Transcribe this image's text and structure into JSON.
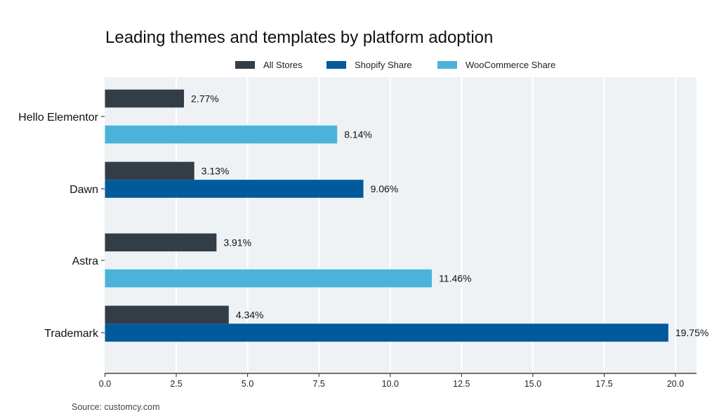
{
  "chart_data": {
    "type": "bar",
    "orientation": "horizontal",
    "title": "Leading themes and templates by platform adoption",
    "categories": [
      "Hello Elementor",
      "Dawn",
      "Astra",
      "Trademark"
    ],
    "series": [
      {
        "name": "All Stores",
        "color": "#333d47",
        "values": [
          2.77,
          3.13,
          3.91,
          4.34
        ]
      },
      {
        "name": "Shopify Share",
        "color": "#005a9c",
        "values": [
          null,
          9.06,
          null,
          19.75
        ]
      },
      {
        "name": "WooCommerce Share",
        "color": "#4bb3d9",
        "values": [
          8.14,
          null,
          11.46,
          null
        ]
      }
    ],
    "data_label_suffix": "%",
    "xlim": [
      0,
      20.75
    ],
    "xticks": [
      "0.0",
      "2.5",
      "5.0",
      "7.5",
      "10.0",
      "12.5",
      "15.0",
      "17.5",
      "20.0"
    ],
    "grid": "vertical",
    "legend": "top",
    "background": "#eef2f5",
    "source": "Source: customcy.com"
  }
}
